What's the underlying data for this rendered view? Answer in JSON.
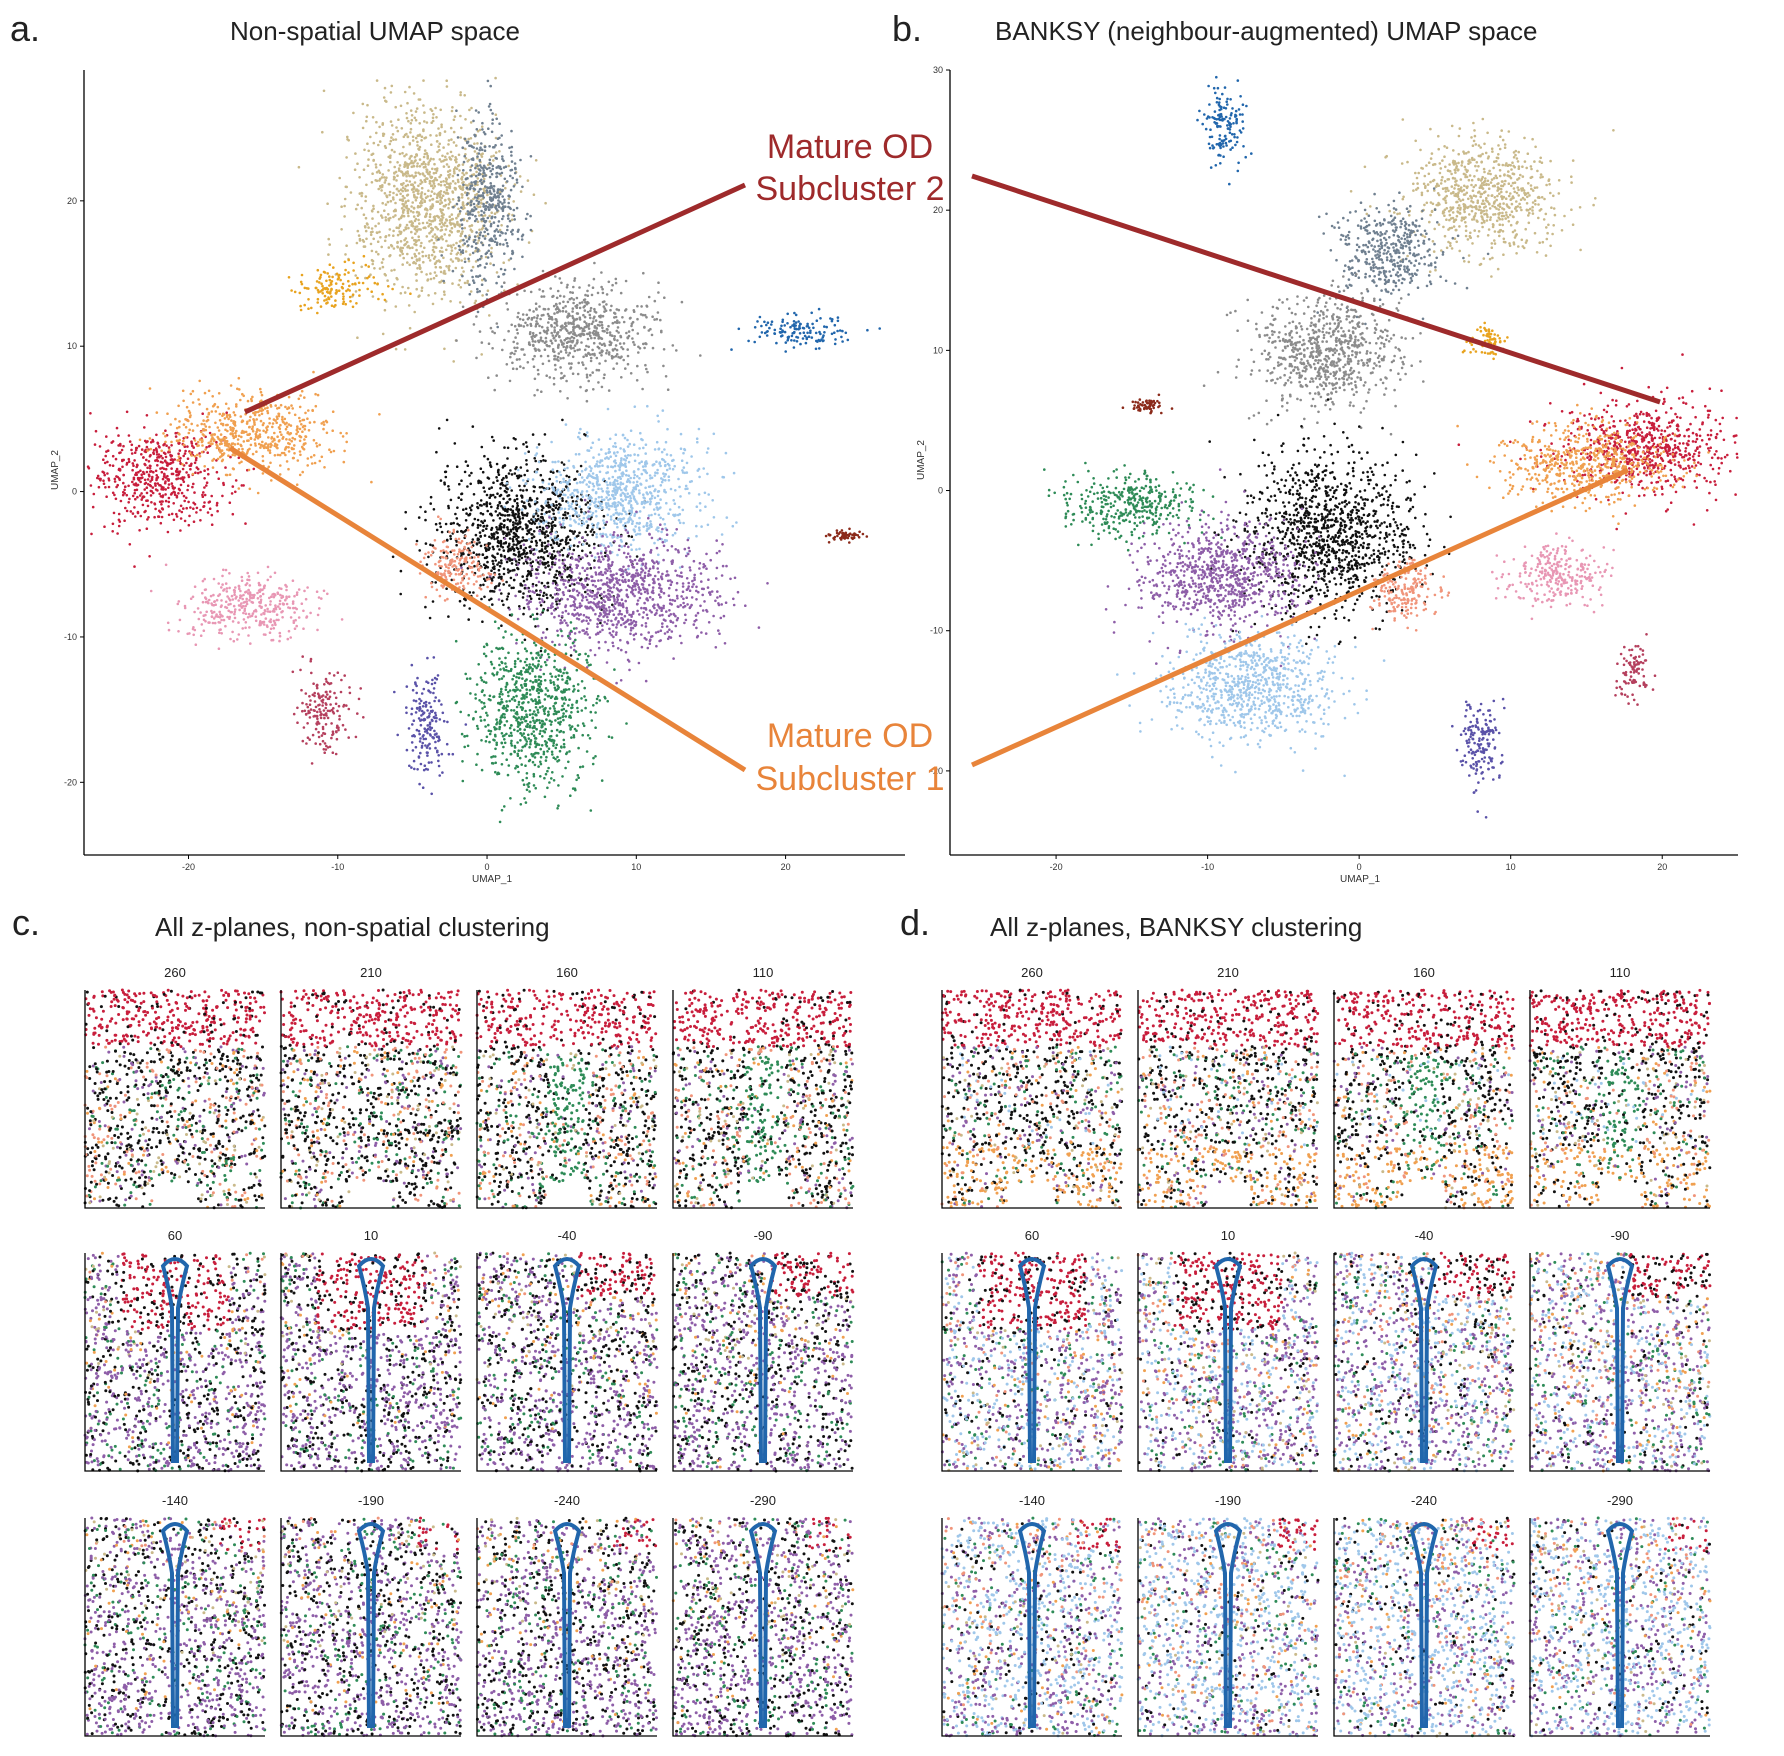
{
  "panels": {
    "a": {
      "letter": "a.",
      "title": "Non-spatial UMAP space"
    },
    "b": {
      "letter": "b.",
      "title": "BANKSY (neighbour-augmented) UMAP space"
    },
    "c": {
      "letter": "c.",
      "title": "All z-planes, non-spatial clustering"
    },
    "d": {
      "letter": "d.",
      "title": "All z-planes, BANKSY clustering"
    }
  },
  "callouts": {
    "od2": {
      "line1": "Mature OD",
      "line2": "Subcluster 2",
      "color": "#9e2a2b"
    },
    "od1": {
      "line1": "Mature OD",
      "line2": "Subcluster 1",
      "color": "#e8843a"
    }
  },
  "chart_data": [
    {
      "type": "scatter",
      "panel": "a",
      "xlabel": "UMAP_1",
      "ylabel": "UMAP_2",
      "xlim": [
        -27,
        28
      ],
      "ylim": [
        -25,
        29
      ],
      "xticks": [
        -20,
        -10,
        0,
        10,
        20
      ],
      "yticks": [
        -20,
        -10,
        0,
        10,
        20
      ],
      "grid": false,
      "clusters": [
        {
          "color": "#c9b98a",
          "cx": -4,
          "cy": 20,
          "rx": 4.5,
          "ry": 6
        },
        {
          "color": "#708090",
          "cx": 0,
          "cy": 20,
          "rx": 2,
          "ry": 5
        },
        {
          "color": "#e8a31f",
          "cx": -10,
          "cy": 14,
          "rx": 2.5,
          "ry": 1.2
        },
        {
          "color": "#8c8c8c",
          "cx": 6,
          "cy": 11,
          "rx": 5,
          "ry": 3
        },
        {
          "color": "#2166ac",
          "cx": 21,
          "cy": 11,
          "rx": 3,
          "ry": 1
        },
        {
          "color": "#c81e3c",
          "cx": -22,
          "cy": 1,
          "rx": 4,
          "ry": 3
        },
        {
          "color": "#f0a050",
          "cx": -16,
          "cy": 4,
          "rx": 5,
          "ry": 2.5
        },
        {
          "color": "#111111",
          "cx": 2,
          "cy": -3,
          "rx": 5,
          "ry": 5
        },
        {
          "color": "#9fc7ea",
          "cx": 9,
          "cy": 0,
          "rx": 5,
          "ry": 3.5
        },
        {
          "color": "#8e5ea8",
          "cx": 9,
          "cy": -7,
          "rx": 6,
          "ry": 3.5
        },
        {
          "color": "#2e8b57",
          "cx": 3,
          "cy": -15,
          "rx": 3.5,
          "ry": 5
        },
        {
          "color": "#f0947a",
          "cx": -2,
          "cy": -5,
          "rx": 2,
          "ry": 2
        },
        {
          "color": "#e897b4",
          "cx": -16,
          "cy": -8,
          "rx": 4,
          "ry": 2
        },
        {
          "color": "#b5405e",
          "cx": -11,
          "cy": -15,
          "rx": 1.5,
          "ry": 2.5
        },
        {
          "color": "#5a52a8",
          "cx": -4,
          "cy": -16,
          "rx": 1.3,
          "ry": 3
        },
        {
          "color": "#8b2a1a",
          "cx": 24,
          "cy": -3,
          "rx": 1,
          "ry": 0.3
        }
      ]
    },
    {
      "type": "scatter",
      "panel": "b",
      "xlabel": "UMAP_1",
      "ylabel": "UMAP_2",
      "xlim": [
        -27,
        25
      ],
      "ylim": [
        -26,
        30
      ],
      "xticks": [
        -20,
        -10,
        0,
        10,
        20
      ],
      "yticks": [
        -20,
        -10,
        0,
        10,
        20,
        30
      ],
      "grid": false,
      "clusters": [
        {
          "color": "#2166ac",
          "cx": -9,
          "cy": 26,
          "rx": 1.3,
          "ry": 2.5
        },
        {
          "color": "#c9b98a",
          "cx": 8,
          "cy": 21,
          "rx": 4.5,
          "ry": 3.5
        },
        {
          "color": "#708090",
          "cx": 2,
          "cy": 17,
          "rx": 3,
          "ry": 3
        },
        {
          "color": "#8c8c8c",
          "cx": -2,
          "cy": 10,
          "rx": 4.5,
          "ry": 3.5
        },
        {
          "color": "#e8a31f",
          "cx": 8.5,
          "cy": 10.5,
          "rx": 1.3,
          "ry": 1.2
        },
        {
          "color": "#c81e3c",
          "cx": 19,
          "cy": 3,
          "rx": 5,
          "ry": 3
        },
        {
          "color": "#f0a050",
          "cx": 15,
          "cy": 2,
          "rx": 5,
          "ry": 2.5
        },
        {
          "color": "#111111",
          "cx": -2,
          "cy": -3,
          "rx": 5,
          "ry": 5
        },
        {
          "color": "#8e5ea8",
          "cx": -9,
          "cy": -6,
          "rx": 5,
          "ry": 3.5
        },
        {
          "color": "#2e8b57",
          "cx": -15,
          "cy": -1,
          "rx": 4,
          "ry": 2
        },
        {
          "color": "#9fc7ea",
          "cx": -7,
          "cy": -14,
          "rx": 5,
          "ry": 3.5
        },
        {
          "color": "#f0947a",
          "cx": 3,
          "cy": -7,
          "rx": 2,
          "ry": 2
        },
        {
          "color": "#e897b4",
          "cx": 13,
          "cy": -6,
          "rx": 3,
          "ry": 2
        },
        {
          "color": "#b5405e",
          "cx": 18,
          "cy": -13,
          "rx": 1,
          "ry": 2
        },
        {
          "color": "#5a52a8",
          "cx": 8,
          "cy": -18,
          "rx": 1.2,
          "ry": 3
        },
        {
          "color": "#8b2a1a",
          "cx": -14,
          "cy": 6,
          "rx": 1,
          "ry": 0.5
        }
      ]
    }
  ],
  "zplanes": {
    "labels": [
      "260",
      "210",
      "160",
      "110",
      "60",
      "10",
      "-40",
      "-90",
      "-140",
      "-190",
      "-240",
      "-290"
    ],
    "palette": {
      "od2": "#c81e3c",
      "od1": "#f0a050",
      "black": "#111111",
      "purple": "#8e5ea8",
      "green": "#2e8b57",
      "lightblue": "#9fc7ea",
      "grey": "#8c8c8c",
      "tan": "#c9b98a",
      "blue": "#2166ac",
      "salmon": "#f0947a"
    }
  }
}
